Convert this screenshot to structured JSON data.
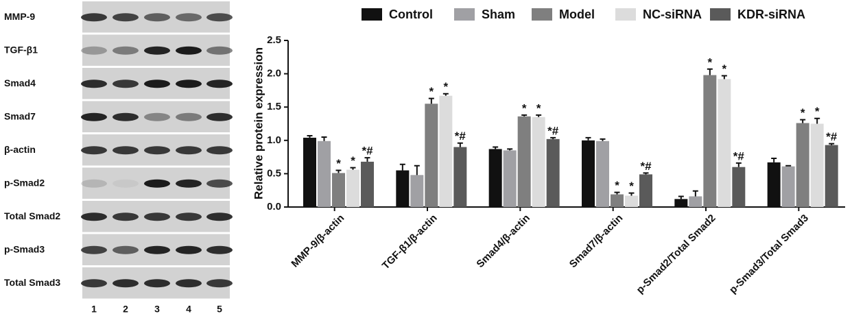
{
  "blot": {
    "rows": [
      "MMP-9",
      "TGF-β1",
      "Smad4",
      "Smad7",
      "β-actin",
      "p-Smad2",
      "Total Smad2",
      "p-Smad3",
      "Total Smad3"
    ],
    "lanes": [
      "1",
      "2",
      "3",
      "4",
      "5"
    ]
  },
  "chart_data": {
    "type": "bar",
    "y_label": "Relative protein expression",
    "categories": [
      "MMP-9/β-actin",
      "TGF-β1/β-actin",
      "Smad4/β-actin",
      "Smad7/β-actin",
      "p-Smad2/Total Smad2",
      "p-Smad3/Total Smad3"
    ],
    "ylim": [
      0,
      2.5
    ],
    "yticks": [
      {
        "value": 0,
        "label": "0.0"
      },
      0.5,
      {
        "value": 1,
        "label": "1.0"
      },
      1.5,
      {
        "value": 2,
        "label": "2.0"
      },
      2.5
    ],
    "series": [
      {
        "name": "Control",
        "color": "#111111",
        "values": [
          1.04,
          0.55,
          0.87,
          1.0,
          0.12,
          0.67
        ],
        "errors": [
          0.03,
          0.09,
          0.03,
          0.04,
          0.04,
          0.06
        ]
      },
      {
        "name": "Sham",
        "color": "#a0a0a4",
        "values": [
          0.99,
          0.48,
          0.85,
          0.99,
          0.16,
          0.61
        ],
        "errors": [
          0.06,
          0.14,
          0.02,
          0.03,
          0.08,
          0.01
        ]
      },
      {
        "name": "Model",
        "color": "#7f7f7f",
        "values": [
          0.51,
          1.55,
          1.36,
          0.19,
          1.98,
          1.26
        ],
        "errors": [
          0.04,
          0.08,
          0.02,
          0.03,
          0.09,
          0.05
        ],
        "annotations": [
          "*",
          "*",
          "*",
          "*",
          "*",
          "*"
        ]
      },
      {
        "name": "NC-siRNA",
        "color": "#dcdcdc",
        "values": [
          0.56,
          1.67,
          1.35,
          0.17,
          1.92,
          1.25
        ],
        "errors": [
          0.03,
          0.03,
          0.03,
          0.04,
          0.05,
          0.08
        ],
        "annotations": [
          "*",
          "*",
          "*",
          "*",
          "*",
          "*"
        ]
      },
      {
        "name": "KDR-siRNA",
        "color": "#5a5a5a",
        "values": [
          0.68,
          0.9,
          1.02,
          0.49,
          0.6,
          0.93
        ],
        "errors": [
          0.06,
          0.06,
          0.02,
          0.02,
          0.06,
          0.02
        ],
        "annotations": [
          "*#",
          "*#",
          "*#",
          "*#",
          "*#",
          "*#"
        ]
      }
    ]
  }
}
